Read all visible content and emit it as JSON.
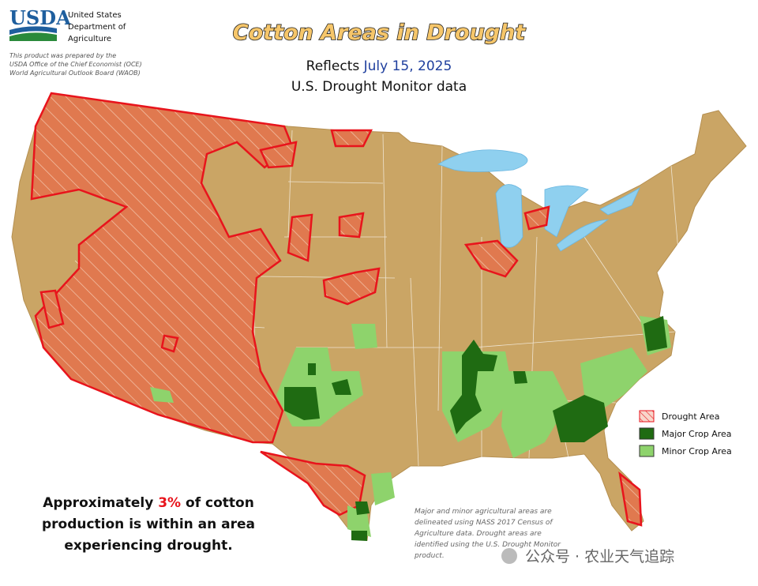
{
  "header": {
    "logo": "USDA",
    "agency": [
      "United States",
      "Department of",
      "Agriculture"
    ],
    "disclaimer": [
      "This product was prepared by the",
      "USDA Office of the Chief Economist (OCE)",
      "World Agricultural Outlook Board (WAOB)"
    ]
  },
  "title": "Cotton Areas in Drought",
  "subtitle": {
    "prefix": "Reflects",
    "date": "July 15, 2025",
    "source": "U.S. Drought Monitor data"
  },
  "legend": [
    "Drought Area",
    "Major Crop Area",
    "Minor Crop Area"
  ],
  "summary": {
    "before": "Approximately",
    "share": "3%",
    "after": "of cotton",
    "lines": [
      "production is within an area",
      "experiencing drought."
    ]
  },
  "footnote": [
    "Major and minor agricultural areas are",
    "delineated using NASS 2017 Census of",
    "Agriculture data.  Drought areas are",
    "identified using the U.S. Drought Monitor",
    "product."
  ],
  "watermark": "公众号 · 农业天气追踪"
}
